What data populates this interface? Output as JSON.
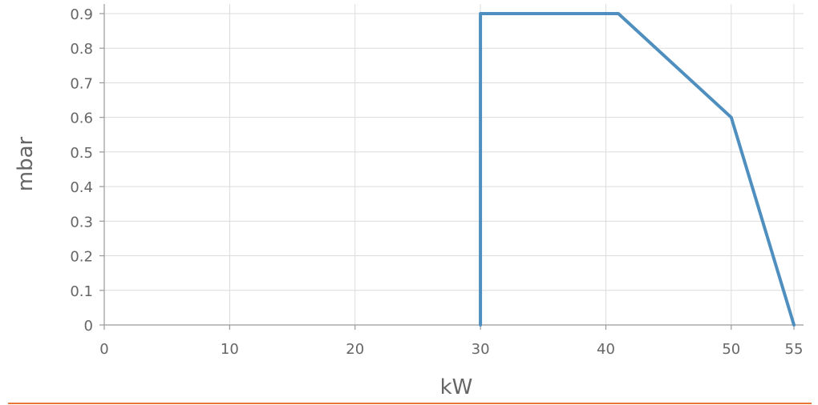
{
  "chart_data": {
    "type": "line",
    "xlabel": "kW",
    "ylabel": "mbar",
    "xlim": [
      0,
      55
    ],
    "ylim": [
      0,
      0.9
    ],
    "x_ticks": [
      {
        "value": 0,
        "label": "0"
      },
      {
        "value": 10,
        "label": "10"
      },
      {
        "value": 20,
        "label": "20"
      },
      {
        "value": 30,
        "label": "30"
      },
      {
        "value": 40,
        "label": "40"
      },
      {
        "value": 50,
        "label": "50"
      },
      {
        "value": 55,
        "label": "55"
      }
    ],
    "y_ticks": [
      {
        "value": 0,
        "label": "0"
      },
      {
        "value": 0.1,
        "label": "0.1"
      },
      {
        "value": 0.2,
        "label": "0.2"
      },
      {
        "value": 0.3,
        "label": "0.3"
      },
      {
        "value": 0.4,
        "label": "0.4"
      },
      {
        "value": 0.5,
        "label": "0.5"
      },
      {
        "value": 0.6,
        "label": "0.6"
      },
      {
        "value": 0.7,
        "label": "0.7"
      },
      {
        "value": 0.8,
        "label": "0.8"
      },
      {
        "value": 0.9,
        "label": "0.9"
      }
    ],
    "grid": true,
    "series": [
      {
        "color": "#4f8fbf",
        "points": [
          {
            "x": 30,
            "y": 0
          },
          {
            "x": 30,
            "y": 0.9
          },
          {
            "x": 41,
            "y": 0.9
          },
          {
            "x": 50,
            "y": 0.6
          },
          {
            "x": 55,
            "y": 0
          }
        ]
      }
    ]
  },
  "colors": {
    "series": "#4f8fbf",
    "bottom_rule": "#e8773a"
  }
}
